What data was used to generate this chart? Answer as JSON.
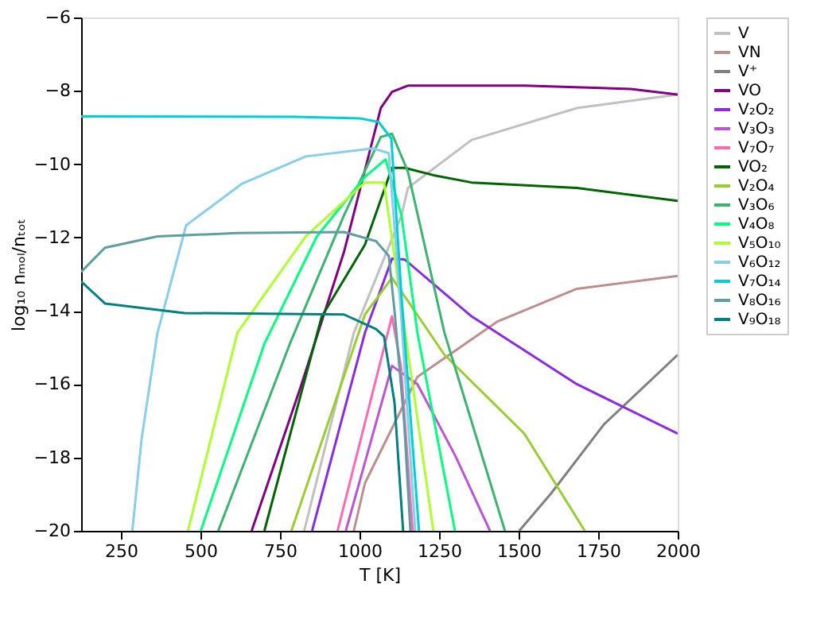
{
  "chart_data": {
    "type": "line",
    "xlabel": "T [K]",
    "ylabel": "log₁₀ nₘₒₗ/nₜₒₜ",
    "xlim": [
      125,
      2000
    ],
    "ylim": [
      -20,
      -6
    ],
    "xticks": [
      250,
      500,
      750,
      1000,
      1250,
      1500,
      1750,
      2000
    ],
    "yticks": [
      -20,
      -18,
      -16,
      -14,
      -12,
      -10,
      -8,
      -6
    ],
    "grid": false,
    "legend": "right",
    "marker": "none",
    "line_style": "solid",
    "series": [
      {
        "name": "V",
        "color": "#c0c0c0",
        "x": [
          826,
          982,
          1132,
          1152,
          1352,
          1683,
          2000
        ],
        "values": [
          -20,
          -14.6,
          -11.4,
          -10.65,
          -9.34,
          -8.47,
          -8.1
        ]
      },
      {
        "name": "VN",
        "color": "#bc8f8f",
        "x": [
          982,
          1017,
          1182,
          1432,
          1683,
          2000
        ],
        "values": [
          -20,
          -18.7,
          -15.8,
          -14.3,
          -13.4,
          -13.05
        ]
      },
      {
        "name": "V⁺",
        "color": "#808080",
        "x": [
          1502,
          1603,
          1768,
          2000
        ],
        "values": [
          -20,
          -18.97,
          -17.1,
          -15.2
        ]
      },
      {
        "name": "VO",
        "color": "#800080",
        "x": [
          661,
          816,
          951,
          1067,
          1102,
          1152,
          1518,
          1853,
          2000
        ],
        "values": [
          -20,
          -16.05,
          -12.4,
          -8.47,
          -8.03,
          -7.86,
          -7.86,
          -7.95,
          -8.1
        ]
      },
      {
        "name": "V₂O₂",
        "color": "#8a2be2",
        "x": [
          851,
          1017,
          1102,
          1142,
          1352,
          1683,
          2000
        ],
        "values": [
          -20,
          -14.6,
          -12.58,
          -12.6,
          -14.15,
          -16.0,
          -17.35
        ]
      },
      {
        "name": "V₃O₃",
        "color": "#ba55d3",
        "x": [
          957,
          1102,
          1182,
          1302,
          1410
        ],
        "values": [
          -20,
          -15.5,
          -16.0,
          -17.97,
          -20
        ]
      },
      {
        "name": "V₇O₇",
        "color": "#ff69b4",
        "x": [
          931,
          1102,
          1130,
          1167
        ],
        "values": [
          -20,
          -14.15,
          -15.5,
          -20
        ]
      },
      {
        "name": "VO₂",
        "color": "#006400",
        "x": [
          701,
          881,
          1017,
          1102,
          1142,
          1232,
          1352,
          1683,
          2000
        ],
        "values": [
          -20,
          -14.16,
          -12.2,
          -10.1,
          -10.1,
          -10.3,
          -10.5,
          -10.65,
          -11.0
        ]
      },
      {
        "name": "V₂O₄",
        "color": "#9acd32",
        "x": [
          786,
          1017,
          1102,
          1267,
          1518,
          1708
        ],
        "values": [
          -20,
          -14.1,
          -13.1,
          -15.2,
          -17.35,
          -20
        ]
      },
      {
        "name": "V₃O₆",
        "color": "#3cb371",
        "x": [
          556,
          781,
          951,
          1067,
          1102,
          1152,
          1267,
          1457
        ],
        "values": [
          -20,
          -14.9,
          -11.4,
          -9.26,
          -9.17,
          -10.2,
          -14.6,
          -20
        ]
      },
      {
        "name": "V₄O₈",
        "color": "#00ff7f",
        "x": [
          501,
          701,
          866,
          1017,
          1082,
          1132,
          1182,
          1300
        ],
        "values": [
          -20,
          -14.9,
          -11.97,
          -10.35,
          -9.87,
          -11.4,
          -14.6,
          -20
        ]
      },
      {
        "name": "V₅O₁₀",
        "color": "#adff2f",
        "x": [
          461,
          616,
          831,
          1017,
          1077,
          1232
        ],
        "values": [
          -20,
          -14.6,
          -11.97,
          -10.5,
          -10.5,
          -20
        ]
      },
      {
        "name": "V₆O₁₂",
        "color": "#87ceeb",
        "x": [
          286,
          315,
          365,
          455,
          631,
          831,
          1042,
          1092,
          1130,
          1175
        ],
        "values": [
          -20,
          -17.5,
          -14.6,
          -11.67,
          -10.53,
          -9.79,
          -9.57,
          -9.7,
          -14,
          -20
        ]
      },
      {
        "name": "V₇O₁₄",
        "color": "#00ced1",
        "x": [
          125,
          800,
          1000,
          1060,
          1100,
          1132,
          1187
        ],
        "values": [
          -8.7,
          -8.71,
          -8.75,
          -8.85,
          -9.3,
          -13.6,
          -20
        ]
      },
      {
        "name": "V₈O₁₆",
        "color": "#5f9ea0",
        "x": [
          125,
          200,
          365,
          616,
          951,
          1052,
          1092,
          1110,
          1140,
          1160
        ],
        "values": [
          -12.94,
          -12.28,
          -11.97,
          -11.88,
          -11.85,
          -12.1,
          -12.5,
          -14,
          -17,
          -20
        ]
      },
      {
        "name": "V₉O₁₈",
        "color": "#008080",
        "x": [
          125,
          200,
          450,
          951,
          1052,
          1077,
          1110,
          1137
        ],
        "values": [
          -13.2,
          -13.8,
          -14.06,
          -14.1,
          -14.5,
          -14.7,
          -16.5,
          -20
        ]
      }
    ]
  }
}
